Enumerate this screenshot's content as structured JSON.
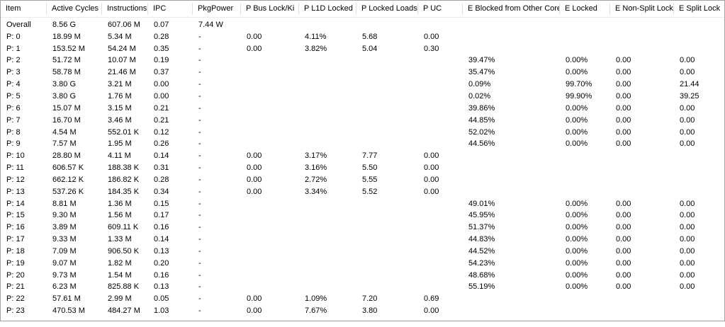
{
  "table": {
    "name": "cpu-core-lock-metrics",
    "colors": {
      "outer_border": "#a0a0a0",
      "header_separator": "#e0e0e0",
      "header_bottom_border": "#ececec",
      "text": "#000000",
      "background": "#ffffff"
    },
    "columns": [
      {
        "key": "item",
        "label": "Item",
        "width": 65
      },
      {
        "key": "active-cycles",
        "label": "Active Cycles",
        "width": 78
      },
      {
        "key": "instructions",
        "label": "Instructions",
        "width": 65
      },
      {
        "key": "ipc",
        "label": "IPC",
        "width": 63
      },
      {
        "key": "pkg-power",
        "label": "PkgPower",
        "width": 68
      },
      {
        "key": "p-bus-lock-ki",
        "label": "P Bus Lock/Ki",
        "width": 82
      },
      {
        "key": "p-l1d-locked",
        "label": "P L1D Locked",
        "width": 81
      },
      {
        "key": "p-locked-loads",
        "label": "P Locked Loads",
        "width": 87
      },
      {
        "key": "p-uc",
        "label": "P UC",
        "width": 63
      },
      {
        "key": "e-blocked-from-other-core",
        "label": "E Blocked from Other Core",
        "width": 137
      },
      {
        "key": "e-locked",
        "label": "E Locked",
        "width": 71
      },
      {
        "key": "e-non-split-lock",
        "label": "E Non-Split Lock",
        "width": 90
      },
      {
        "key": "e-split-lock",
        "label": "E Split Lock",
        "width": 73
      }
    ],
    "rows": [
      [
        "Overall",
        "8.56 G",
        "607.06 M",
        "0.07",
        "7.44 W",
        "",
        "",
        "",
        "",
        "",
        "",
        "",
        ""
      ],
      [
        "P: 0",
        "18.99 M",
        "5.34 M",
        "0.28",
        "-",
        "0.00",
        "4.11%",
        "5.68",
        "0.00",
        "",
        "",
        "",
        ""
      ],
      [
        "P: 1",
        "153.52 M",
        "54.24 M",
        "0.35",
        "-",
        "0.00",
        "3.82%",
        "5.04",
        "0.30",
        "",
        "",
        "",
        ""
      ],
      [
        "P: 2",
        "51.72 M",
        "10.07 M",
        "0.19",
        "-",
        "",
        "",
        "",
        "",
        "39.47%",
        "0.00%",
        "0.00",
        "0.00"
      ],
      [
        "P: 3",
        "58.78 M",
        "21.46 M",
        "0.37",
        "-",
        "",
        "",
        "",
        "",
        "35.47%",
        "0.00%",
        "0.00",
        "0.00"
      ],
      [
        "P: 4",
        "3.80 G",
        "3.21 M",
        "0.00",
        "-",
        "",
        "",
        "",
        "",
        "0.09%",
        "99.70%",
        "0.00",
        "21.44"
      ],
      [
        "P: 5",
        "3.80 G",
        "1.76 M",
        "0.00",
        "-",
        "",
        "",
        "",
        "",
        "0.02%",
        "99.90%",
        "0.00",
        "39.25"
      ],
      [
        "P: 6",
        "15.07 M",
        "3.15 M",
        "0.21",
        "-",
        "",
        "",
        "",
        "",
        "39.86%",
        "0.00%",
        "0.00",
        "0.00"
      ],
      [
        "P: 7",
        "16.70 M",
        "3.46 M",
        "0.21",
        "-",
        "",
        "",
        "",
        "",
        "44.85%",
        "0.00%",
        "0.00",
        "0.00"
      ],
      [
        "P: 8",
        "4.54 M",
        "552.01 K",
        "0.12",
        "-",
        "",
        "",
        "",
        "",
        "52.02%",
        "0.00%",
        "0.00",
        "0.00"
      ],
      [
        "P: 9",
        "7.57 M",
        "1.95 M",
        "0.26",
        "-",
        "",
        "",
        "",
        "",
        "44.56%",
        "0.00%",
        "0.00",
        "0.00"
      ],
      [
        "P: 10",
        "28.80 M",
        "4.11 M",
        "0.14",
        "-",
        "0.00",
        "3.17%",
        "7.77",
        "0.00",
        "",
        "",
        "",
        ""
      ],
      [
        "P: 11",
        "606.57 K",
        "188.38 K",
        "0.31",
        "-",
        "0.00",
        "3.16%",
        "5.50",
        "0.00",
        "",
        "",
        "",
        ""
      ],
      [
        "P: 12",
        "662.12 K",
        "186.82 K",
        "0.28",
        "-",
        "0.00",
        "2.72%",
        "5.55",
        "0.00",
        "",
        "",
        "",
        ""
      ],
      [
        "P: 13",
        "537.26 K",
        "184.35 K",
        "0.34",
        "-",
        "0.00",
        "3.34%",
        "5.52",
        "0.00",
        "",
        "",
        "",
        ""
      ],
      [
        "P: 14",
        "8.81 M",
        "1.36 M",
        "0.15",
        "-",
        "",
        "",
        "",
        "",
        "49.01%",
        "0.00%",
        "0.00",
        "0.00"
      ],
      [
        "P: 15",
        "9.30 M",
        "1.56 M",
        "0.17",
        "-",
        "",
        "",
        "",
        "",
        "45.95%",
        "0.00%",
        "0.00",
        "0.00"
      ],
      [
        "P: 16",
        "3.89 M",
        "609.11 K",
        "0.16",
        "-",
        "",
        "",
        "",
        "",
        "51.37%",
        "0.00%",
        "0.00",
        "0.00"
      ],
      [
        "P: 17",
        "9.33 M",
        "1.33 M",
        "0.14",
        "-",
        "",
        "",
        "",
        "",
        "44.83%",
        "0.00%",
        "0.00",
        "0.00"
      ],
      [
        "P: 18",
        "7.09 M",
        "906.50 K",
        "0.13",
        "-",
        "",
        "",
        "",
        "",
        "44.52%",
        "0.00%",
        "0.00",
        "0.00"
      ],
      [
        "P: 19",
        "9.07 M",
        "1.82 M",
        "0.20",
        "-",
        "",
        "",
        "",
        "",
        "54.23%",
        "0.00%",
        "0.00",
        "0.00"
      ],
      [
        "P: 20",
        "9.73 M",
        "1.54 M",
        "0.16",
        "-",
        "",
        "",
        "",
        "",
        "48.68%",
        "0.00%",
        "0.00",
        "0.00"
      ],
      [
        "P: 21",
        "6.23 M",
        "825.88 K",
        "0.13",
        "-",
        "",
        "",
        "",
        "",
        "55.19%",
        "0.00%",
        "0.00",
        "0.00"
      ],
      [
        "P: 22",
        "57.61 M",
        "2.99 M",
        "0.05",
        "-",
        "0.00",
        "1.09%",
        "7.20",
        "0.69",
        "",
        "",
        "",
        ""
      ],
      [
        "P: 23",
        "470.53 M",
        "484.27 M",
        "1.03",
        "-",
        "0.00",
        "7.67%",
        "3.80",
        "0.00",
        "",
        "",
        "",
        ""
      ]
    ]
  }
}
